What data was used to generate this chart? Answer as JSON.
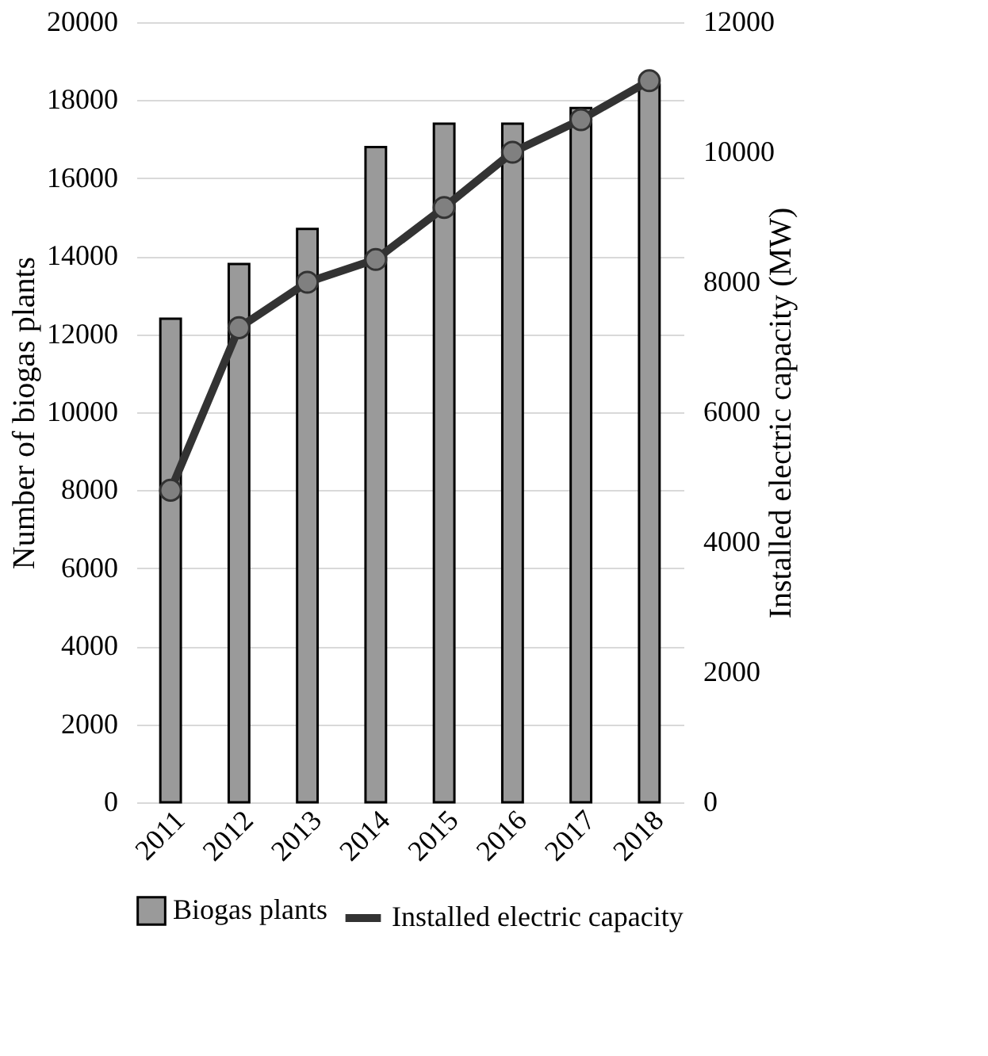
{
  "chart_data": {
    "type": "bar",
    "categories": [
      "2011",
      "2012",
      "2013",
      "2014",
      "2015",
      "2016",
      "2017",
      "2018"
    ],
    "ylabel": "Number of biogas plants",
    "y2label": "Installed electric capacity (MW)",
    "series": [
      {
        "name": "Biogas plants",
        "color": "#9a9a9a",
        "values": [
          12400,
          13800,
          14700,
          16800,
          17400,
          17400,
          17800,
          18400
        ]
      },
      {
        "name": "Installed electric capacity",
        "type": "line",
        "axis": "y2",
        "color": "#333333",
        "values": [
          4800,
          7300,
          8000,
          8350,
          9150,
          10000,
          10500,
          11100
        ]
      }
    ],
    "ylim": [
      0,
      20000
    ],
    "yticks": [
      0,
      2000,
      4000,
      6000,
      8000,
      10000,
      12000,
      14000,
      16000,
      18000,
      20000
    ],
    "y2lim": [
      0,
      12000
    ],
    "y2ticks": [
      0,
      2000,
      4000,
      6000,
      8000,
      10000,
      12000
    ],
    "grid": "y",
    "legend": "bottom",
    "marker": "circle",
    "line_style": "solid"
  }
}
